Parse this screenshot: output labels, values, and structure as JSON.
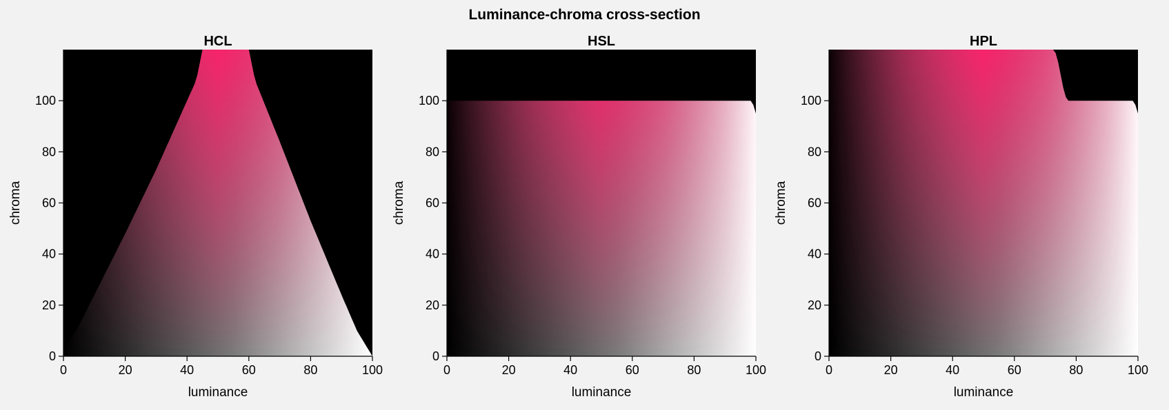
{
  "figure": {
    "title": "Luminance-chroma cross-section"
  },
  "chart_data": [
    {
      "type": "heatmap",
      "title": "HCL",
      "xlabel": "luminance",
      "ylabel": "chroma",
      "xlim": [
        0,
        100
      ],
      "ylim": [
        0,
        120
      ],
      "xticks": [
        "0",
        "20",
        "40",
        "60",
        "80",
        "100"
      ],
      "yticks": [
        "0",
        "20",
        "40",
        "60",
        "80",
        "100"
      ],
      "background_color": "#000000",
      "hue_color": "#ff1f6b",
      "max_chroma_by_luminance": {
        "luminance": [
          0,
          2,
          5,
          10,
          20,
          30,
          40,
          43,
          45,
          60,
          62,
          70,
          80,
          90,
          95,
          98,
          100
        ],
        "chroma": [
          3,
          6,
          12,
          24,
          48,
          73,
          100,
          108,
          120,
          120,
          108,
          84,
          53,
          24,
          10,
          4,
          0
        ]
      }
    },
    {
      "type": "heatmap",
      "title": "HSL",
      "xlabel": "luminance",
      "ylabel": "chroma",
      "xlim": [
        0,
        100
      ],
      "ylim": [
        0,
        120
      ],
      "xticks": [
        "0",
        "20",
        "40",
        "60",
        "80",
        "100"
      ],
      "yticks": [
        "0",
        "20",
        "40",
        "60",
        "80",
        "100"
      ],
      "background_color": "#000000",
      "hue_color": "#ff1f6b",
      "max_chroma_by_luminance": {
        "luminance": [
          0,
          99,
          99.5,
          100
        ],
        "chroma": [
          100,
          100,
          95,
          95
        ]
      }
    },
    {
      "type": "heatmap",
      "title": "HPL",
      "xlabel": "luminance",
      "ylabel": "chroma",
      "xlim": [
        0,
        100
      ],
      "ylim": [
        0,
        120
      ],
      "xticks": [
        "0",
        "20",
        "40",
        "60",
        "80",
        "100"
      ],
      "yticks": [
        "0",
        "20",
        "40",
        "60",
        "80",
        "100"
      ],
      "background_color": "#000000",
      "hue_color": "#ff1f6b",
      "max_chroma_by_luminance": {
        "luminance": [
          0,
          73,
          74,
          75,
          76,
          77,
          99,
          99.5,
          100
        ],
        "chroma": [
          120,
          120,
          116,
          110,
          104,
          100,
          100,
          95,
          95
        ]
      }
    }
  ]
}
